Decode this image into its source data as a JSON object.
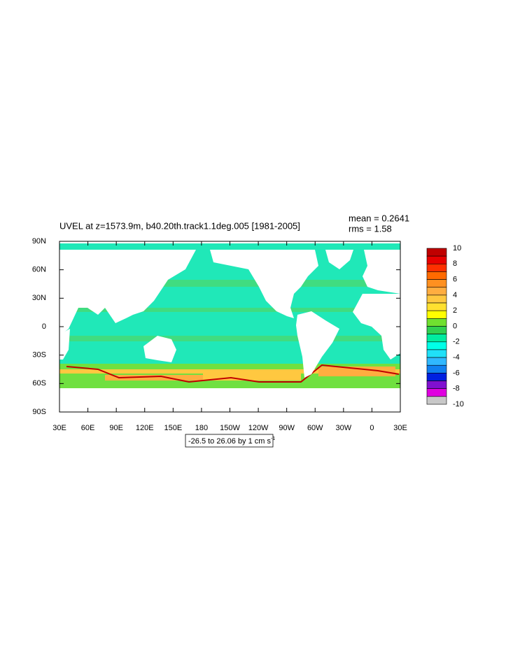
{
  "title": "UVEL at z=1573.9m, b40.20th.track1.1deg.005 [1981-2005]",
  "stats": [
    "mean = 0.2641",
    "rms = 1.58"
  ],
  "info_label": "-26.5 to 26.06 by 1 cm s",
  "info_label_superscript": "-1",
  "map": {
    "xlim": [
      30,
      390
    ],
    "ylim": [
      -90,
      90
    ],
    "xticks": [
      {
        "value": 30,
        "label": "30E"
      },
      {
        "value": 60,
        "label": "60E"
      },
      {
        "value": 90,
        "label": "90E"
      },
      {
        "value": 120,
        "label": "120E"
      },
      {
        "value": 150,
        "label": "150E"
      },
      {
        "value": 180,
        "label": "180"
      },
      {
        "value": 210,
        "label": "150W"
      },
      {
        "value": 240,
        "label": "120W"
      },
      {
        "value": 270,
        "label": "90W"
      },
      {
        "value": 300,
        "label": "60W"
      },
      {
        "value": 330,
        "label": "30W"
      },
      {
        "value": 360,
        "label": "0"
      },
      {
        "value": 390,
        "label": "30E"
      }
    ],
    "yticks": [
      {
        "value": 90,
        "label": "90N"
      },
      {
        "value": 60,
        "label": "60N"
      },
      {
        "value": 30,
        "label": "30N"
      },
      0,
      {
        "value": -30,
        "label": "30S"
      },
      {
        "value": -60,
        "label": "60S"
      },
      {
        "value": -90,
        "label": "90S"
      }
    ]
  },
  "colorbar": {
    "levels": [
      10,
      8,
      6,
      4,
      2,
      0,
      -2,
      -4,
      -6,
      -8,
      -10
    ],
    "colors": [
      "#c00000",
      "#e80000",
      "#ff3000",
      "#ff6a00",
      "#ff9020",
      "#ffad40",
      "#ffc840",
      "#ffe030",
      "#ffff00",
      "#70e030",
      "#30d050",
      "#00eca0",
      "#00ffe8",
      "#20e0f8",
      "#30b8ff",
      "#1080f0",
      "#0020e0",
      "#8010d0",
      "#e000e0",
      "#c8c8c8"
    ]
  }
}
